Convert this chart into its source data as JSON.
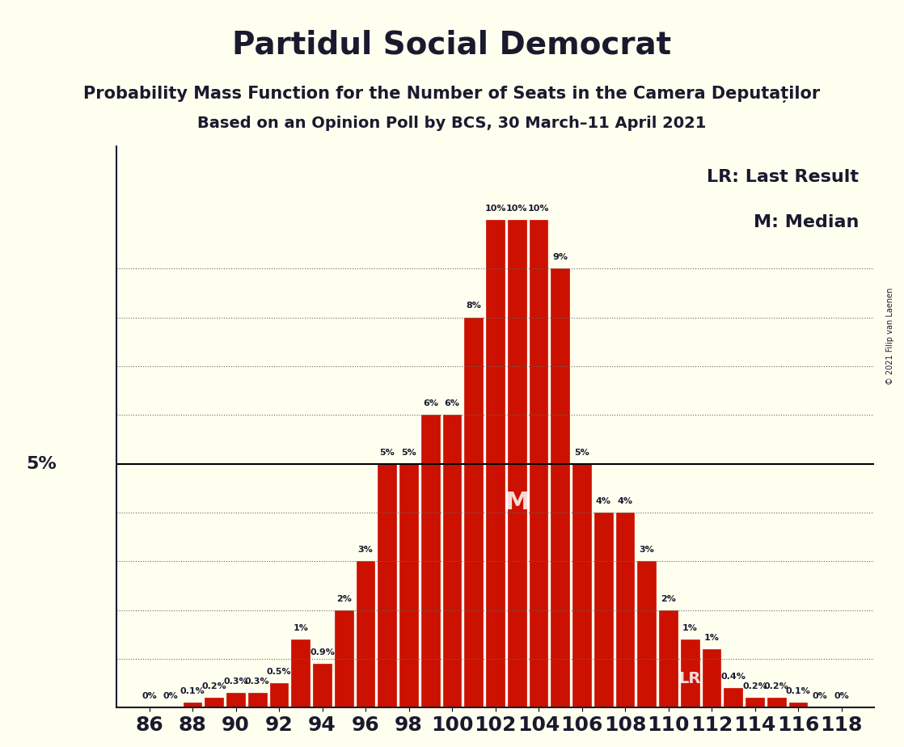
{
  "title": "Partidul Social Democrat",
  "subtitle1": "Probability Mass Function for the Number of Seats in the Camera Deputaților",
  "subtitle2": "Based on an Opinion Poll by BCS, 30 March–11 April 2021",
  "copyright": "© 2021 Filip van Laenen",
  "seats": [
    86,
    88,
    90,
    92,
    94,
    96,
    98,
    100,
    102,
    104,
    106,
    108,
    110,
    112,
    114,
    116,
    118
  ],
  "probabilities": [
    0.0,
    0.0,
    0.1,
    0.2,
    0.3,
    0.3,
    0.5,
    1.4,
    0.9,
    2.0,
    3.0,
    5.0,
    5.0,
    6.0,
    6.0,
    8.0,
    10.0,
    10.0,
    10.0,
    9.0,
    5.0,
    4.0,
    4.0,
    3.0,
    2.0,
    1.4,
    1.2,
    0.4,
    0.2,
    0.2,
    0.1,
    0.0,
    0.0
  ],
  "seats_all": [
    86,
    87,
    88,
    89,
    90,
    91,
    92,
    93,
    94,
    95,
    96,
    97,
    98,
    99,
    100,
    101,
    102,
    103,
    104,
    105,
    106,
    107,
    108,
    109,
    110,
    111,
    112,
    113,
    114,
    115,
    116,
    117,
    118
  ],
  "bar_color": "#CC1100",
  "bar_edge_color": "#CC1100",
  "background_color": "#FFFFF0",
  "axis_color": "#1a1a2e",
  "text_color": "#1a1a2e",
  "hline_5pct_color": "#000000",
  "grid_color": "#666666",
  "median_seat": 103,
  "lr_seat": 111,
  "label_5pct": "5%",
  "legend_lr": "LR: Last Result",
  "legend_m": "M: Median",
  "ytick_5pct_y": 5.0,
  "title_fontsize": 28,
  "subtitle_fontsize": 16,
  "label_fontsize": 11,
  "bar_label_values": [
    0.0,
    0.0,
    0.1,
    0.2,
    0.3,
    0.3,
    0.5,
    1.4,
    0.9,
    2.0,
    3.0,
    5.0,
    5.0,
    6.0,
    6.0,
    8.0,
    10.0,
    10.0,
    10.0,
    9.0,
    5.0,
    4.0,
    4.0,
    3.0,
    2.0,
    1.4,
    1.2,
    0.4,
    0.2,
    0.2,
    0.1,
    0.0,
    0.0
  ]
}
